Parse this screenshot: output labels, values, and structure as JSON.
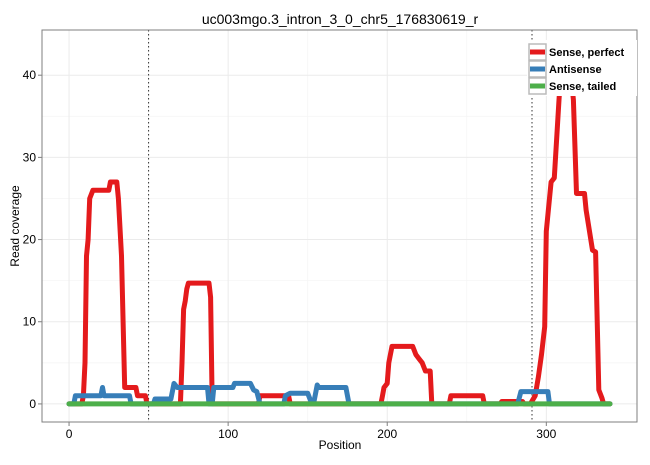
{
  "chart_data": {
    "type": "line",
    "title": "uc003mgo.3_intron_3_0_chr5_176830619_r",
    "xlabel": "Position",
    "ylabel": "Read coverage",
    "xlim": [
      -17,
      357
    ],
    "ylim": [
      -2.2,
      45.5
    ],
    "xticks": [
      0,
      100,
      200,
      300
    ],
    "yticks": [
      0,
      10,
      20,
      30,
      40
    ],
    "grid": true,
    "legend_position": "top-right",
    "vlines": [
      50,
      291
    ],
    "series": [
      {
        "name": "Sense, perfect",
        "color": "#e41a1c",
        "points": [
          [
            0,
            0
          ],
          [
            8,
            0
          ],
          [
            9,
            1
          ],
          [
            10,
            5
          ],
          [
            11,
            18
          ],
          [
            12,
            20
          ],
          [
            13,
            25
          ],
          [
            14,
            25.5
          ],
          [
            15,
            26
          ],
          [
            25,
            26
          ],
          [
            26,
            27
          ],
          [
            30,
            27
          ],
          [
            31,
            25
          ],
          [
            33,
            18
          ],
          [
            35,
            2
          ],
          [
            42,
            2
          ],
          [
            43,
            1
          ],
          [
            48,
            1
          ],
          [
            49,
            0
          ],
          [
            70,
            0
          ],
          [
            71,
            5
          ],
          [
            72,
            11.5
          ],
          [
            73,
            12.5
          ],
          [
            74,
            14
          ],
          [
            75,
            14.7
          ],
          [
            88,
            14.7
          ],
          [
            89,
            13
          ],
          [
            90,
            0
          ],
          [
            119,
            0
          ],
          [
            120,
            1
          ],
          [
            138,
            1
          ],
          [
            139,
            0
          ],
          [
            196,
            0
          ],
          [
            197,
            1
          ],
          [
            198,
            2
          ],
          [
            200,
            2.5
          ],
          [
            201,
            5
          ],
          [
            203,
            7
          ],
          [
            216,
            7
          ],
          [
            218,
            6
          ],
          [
            220,
            5.5
          ],
          [
            222,
            5
          ],
          [
            224,
            4
          ],
          [
            227,
            4
          ],
          [
            228,
            0
          ],
          [
            239,
            0
          ],
          [
            240,
            1
          ],
          [
            260,
            1
          ],
          [
            261,
            0
          ],
          [
            271,
            0
          ],
          [
            272,
            0.3
          ],
          [
            285,
            0.3
          ],
          [
            286,
            0
          ],
          [
            290,
            0
          ],
          [
            293,
            1
          ],
          [
            295,
            3.3
          ],
          [
            297,
            6
          ],
          [
            299,
            9.4
          ],
          [
            300,
            21
          ],
          [
            303,
            27
          ],
          [
            305,
            27.5
          ],
          [
            308,
            37
          ],
          [
            310,
            43
          ],
          [
            314,
            43
          ],
          [
            317,
            37
          ],
          [
            319,
            25.6
          ],
          [
            324,
            25.6
          ],
          [
            325,
            23.6
          ],
          [
            329,
            18.7
          ],
          [
            331,
            18.5
          ],
          [
            333,
            1.7
          ],
          [
            335,
            0.7
          ],
          [
            336,
            0
          ],
          [
            340,
            0
          ]
        ]
      },
      {
        "name": "Antisense",
        "color": "#377eb8",
        "points": [
          [
            0,
            0
          ],
          [
            3,
            0
          ],
          [
            4,
            1
          ],
          [
            20,
            1
          ],
          [
            21,
            2
          ],
          [
            22,
            1
          ],
          [
            38,
            1
          ],
          [
            39,
            0
          ],
          [
            53,
            0
          ],
          [
            54,
            0.6
          ],
          [
            64,
            0.6
          ],
          [
            66,
            2.5
          ],
          [
            68,
            2
          ],
          [
            87,
            2
          ],
          [
            88,
            0
          ],
          [
            90,
            0
          ],
          [
            91,
            2
          ],
          [
            103,
            2
          ],
          [
            104,
            2.5
          ],
          [
            114,
            2.5
          ],
          [
            116,
            1.7
          ],
          [
            118,
            1.5
          ],
          [
            120,
            0
          ],
          [
            135,
            0
          ],
          [
            136,
            1
          ],
          [
            139,
            1.3
          ],
          [
            150,
            1.3
          ],
          [
            152,
            0.3
          ],
          [
            154,
            0.3
          ],
          [
            156,
            2.3
          ],
          [
            157,
            2
          ],
          [
            174,
            2
          ],
          [
            176,
            0
          ],
          [
            282,
            0
          ],
          [
            284,
            1.5
          ],
          [
            301,
            1.5
          ],
          [
            302,
            0
          ],
          [
            340,
            0
          ]
        ]
      },
      {
        "name": "Sense, tailed",
        "color": "#4daf4a",
        "points": [
          [
            0,
            0
          ],
          [
            340,
            0
          ]
        ]
      }
    ]
  }
}
